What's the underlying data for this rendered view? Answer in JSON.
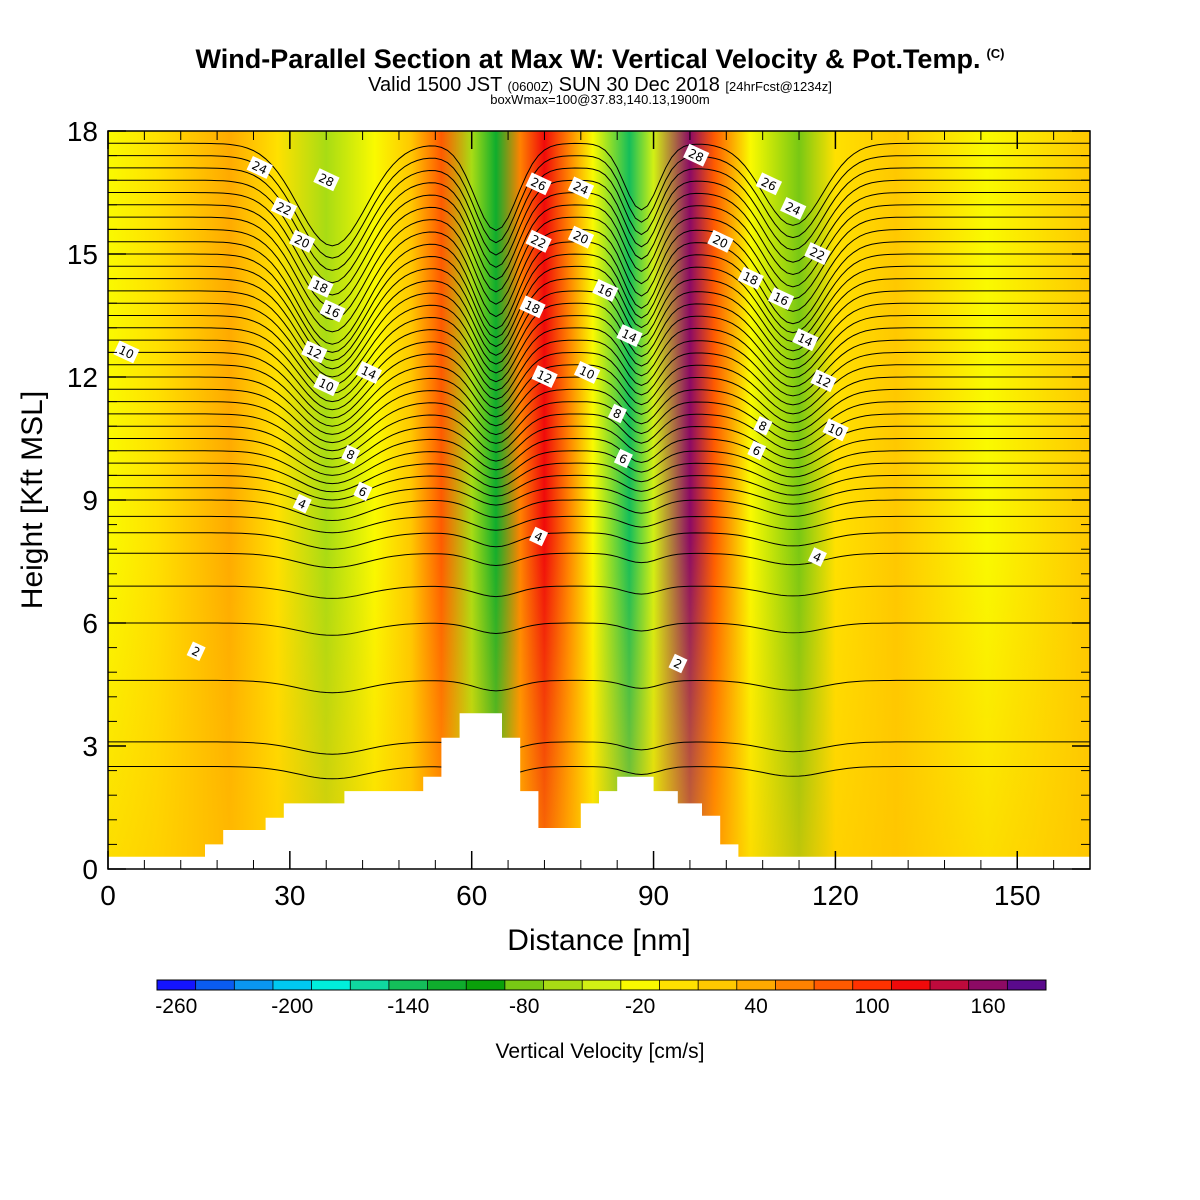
{
  "header": {
    "title": "Wind-Parallel Section at Max W: Vertical Velocity & Pot.Temp.",
    "title_mark": "(C)",
    "subtitle_a": "Valid 1500 JST",
    "subtitle_b": "(0600Z)",
    "subtitle_c": "SUN 30 Dec 2018",
    "subtitle_d": "[24hrFcst@1234z]",
    "box_info": "boxWmax=100@37.83,140.13,1900m"
  },
  "chart_data": {
    "type": "heatmap",
    "xlabel": "Distance [nm]",
    "ylabel": "Height [Kft MSL]",
    "xlim": [
      0,
      162
    ],
    "ylim": [
      0,
      18
    ],
    "x_ticks": [
      "0",
      "30",
      "60",
      "90",
      "120",
      "150"
    ],
    "y_ticks": [
      "0",
      "3",
      "6",
      "9",
      "12",
      "15",
      "18"
    ],
    "colorbar": {
      "label": "Vertical Velocity [cm/s]",
      "tick_labels": [
        "-260",
        "-200",
        "-140",
        "-80",
        "-20",
        "40",
        "100",
        "160"
      ],
      "levels": [
        -260,
        -240,
        -220,
        -200,
        -180,
        -160,
        -140,
        -120,
        -100,
        -80,
        -60,
        -40,
        -20,
        0,
        20,
        40,
        60,
        80,
        100,
        120,
        140,
        160,
        180
      ],
      "colors": [
        "#1414ff",
        "#0a5cf0",
        "#0a96f0",
        "#00c8f0",
        "#00eedc",
        "#10d7a0",
        "#14be5a",
        "#0fad2d",
        "#0aa00a",
        "#78c814",
        "#a8dc14",
        "#d2f014",
        "#fafa00",
        "#ffe100",
        "#ffc800",
        "#ffaa00",
        "#ff8200",
        "#ff5a00",
        "#ff3200",
        "#f00a0a",
        "#be0a3c",
        "#8c0a64",
        "#5a0a8c"
      ]
    },
    "velocity_bands": [
      {
        "x": 0,
        "value": -10
      },
      {
        "x": 8,
        "value": 10
      },
      {
        "x": 20,
        "value": 40
      },
      {
        "x": 28,
        "value": 10
      },
      {
        "x": 36,
        "value": -55
      },
      {
        "x": 44,
        "value": -15
      },
      {
        "x": 50,
        "value": 30
      },
      {
        "x": 55,
        "value": 90
      },
      {
        "x": 60,
        "value": -60
      },
      {
        "x": 64,
        "value": -110
      },
      {
        "x": 68,
        "value": 60
      },
      {
        "x": 72,
        "value": 130
      },
      {
        "x": 76,
        "value": 60
      },
      {
        "x": 80,
        "value": -20
      },
      {
        "x": 86,
        "value": -130
      },
      {
        "x": 90,
        "value": -40
      },
      {
        "x": 96,
        "value": 160
      },
      {
        "x": 100,
        "value": 90
      },
      {
        "x": 106,
        "value": -20
      },
      {
        "x": 114,
        "value": -70
      },
      {
        "x": 120,
        "value": 10
      },
      {
        "x": 130,
        "value": 20
      },
      {
        "x": 145,
        "value": -10
      },
      {
        "x": 162,
        "value": 20
      }
    ],
    "terrain": [
      [
        0,
        0.3
      ],
      [
        16,
        0.3
      ],
      [
        16,
        0.6
      ],
      [
        19,
        0.6
      ],
      [
        19,
        0.95
      ],
      [
        26,
        0.95
      ],
      [
        26,
        1.25
      ],
      [
        29,
        1.25
      ],
      [
        29,
        1.6
      ],
      [
        39,
        1.6
      ],
      [
        39,
        1.9
      ],
      [
        52,
        1.9
      ],
      [
        52,
        2.25
      ],
      [
        55,
        2.25
      ],
      [
        55,
        3.2
      ],
      [
        58,
        3.2
      ],
      [
        58,
        3.8
      ],
      [
        65,
        3.8
      ],
      [
        65,
        3.2
      ],
      [
        68,
        3.2
      ],
      [
        68,
        1.9
      ],
      [
        71,
        1.9
      ],
      [
        71,
        1.0
      ],
      [
        78,
        1.0
      ],
      [
        78,
        1.6
      ],
      [
        81,
        1.6
      ],
      [
        81,
        1.9
      ],
      [
        84,
        1.9
      ],
      [
        84,
        2.25
      ],
      [
        90,
        2.25
      ],
      [
        90,
        1.9
      ],
      [
        94,
        1.9
      ],
      [
        94,
        1.6
      ],
      [
        98,
        1.6
      ],
      [
        98,
        1.3
      ],
      [
        101,
        1.3
      ],
      [
        101,
        0.6
      ],
      [
        104,
        0.6
      ],
      [
        104,
        0.3
      ],
      [
        162,
        0.3
      ]
    ],
    "contour_labels": [
      "2",
      "2",
      "4",
      "4",
      "4",
      "6",
      "6",
      "6",
      "8",
      "8",
      "8",
      "10",
      "10",
      "10",
      "10",
      "12",
      "12",
      "12",
      "14",
      "14",
      "14",
      "16",
      "16",
      "16",
      "18",
      "18",
      "18",
      "20",
      "20",
      "20",
      "22",
      "22",
      "22",
      "24",
      "24",
      "24",
      "26",
      "26",
      "28",
      "28"
    ],
    "potential_temperature_isentropes": [
      {
        "base": 2.5,
        "down": 0.3,
        "label": "2"
      },
      {
        "base": 3.1,
        "down": 0.3,
        "label": ""
      },
      {
        "base": 4.6,
        "down": 0.3,
        "label": ""
      },
      {
        "base": 6.0,
        "down": 0.3,
        "label": "2"
      },
      {
        "base": 6.9,
        "down": 0.3,
        "label": ""
      },
      {
        "base": 7.7,
        "down": 0.35,
        "label": ""
      },
      {
        "base": 8.2,
        "down": 0.4,
        "label": "4"
      },
      {
        "base": 8.6,
        "down": 0.4,
        "label": ""
      },
      {
        "base": 9.0,
        "down": 0.5,
        "label": ""
      },
      {
        "base": 9.3,
        "down": 0.5,
        "label": "6"
      },
      {
        "base": 9.6,
        "down": 0.6,
        "label": ""
      },
      {
        "base": 9.9,
        "down": 0.7,
        "label": "8"
      },
      {
        "base": 10.2,
        "down": 0.8,
        "label": ""
      },
      {
        "base": 10.5,
        "down": 0.9,
        "label": "10"
      },
      {
        "base": 10.8,
        "down": 1.0,
        "label": ""
      },
      {
        "base": 11.1,
        "down": 1.1,
        "label": "12"
      },
      {
        "base": 11.4,
        "down": 1.2,
        "label": ""
      },
      {
        "base": 11.7,
        "down": 1.3,
        "label": "14"
      },
      {
        "base": 12.0,
        "down": 1.4,
        "label": ""
      },
      {
        "base": 12.3,
        "down": 1.5,
        "label": "16"
      },
      {
        "base": 12.6,
        "down": 1.6,
        "label": ""
      },
      {
        "base": 12.9,
        "down": 1.7,
        "label": "18"
      },
      {
        "base": 13.2,
        "down": 1.8,
        "label": ""
      },
      {
        "base": 13.5,
        "down": 1.9,
        "label": "20"
      },
      {
        "base": 13.8,
        "down": 2.0,
        "label": ""
      },
      {
        "base": 14.1,
        "down": 2.1,
        "label": "22"
      },
      {
        "base": 14.4,
        "down": 2.2,
        "label": ""
      },
      {
        "base": 14.7,
        "down": 2.3,
        "label": "24"
      },
      {
        "base": 15.0,
        "down": 2.4,
        "label": ""
      },
      {
        "base": 15.3,
        "down": 2.5,
        "label": "26"
      },
      {
        "base": 15.6,
        "down": 2.5,
        "label": ""
      },
      {
        "base": 15.9,
        "down": 2.5,
        "label": "28"
      },
      {
        "base": 16.2,
        "down": 2.5,
        "label": ""
      },
      {
        "base": 16.5,
        "down": 2.5,
        "label": ""
      },
      {
        "base": 16.8,
        "down": 2.5,
        "label": ""
      },
      {
        "base": 17.1,
        "down": 2.5,
        "label": ""
      },
      {
        "base": 17.4,
        "down": 2.5,
        "label": ""
      },
      {
        "base": 17.7,
        "down": 2.5,
        "label": ""
      }
    ],
    "grid": false,
    "legend": "bottom"
  }
}
